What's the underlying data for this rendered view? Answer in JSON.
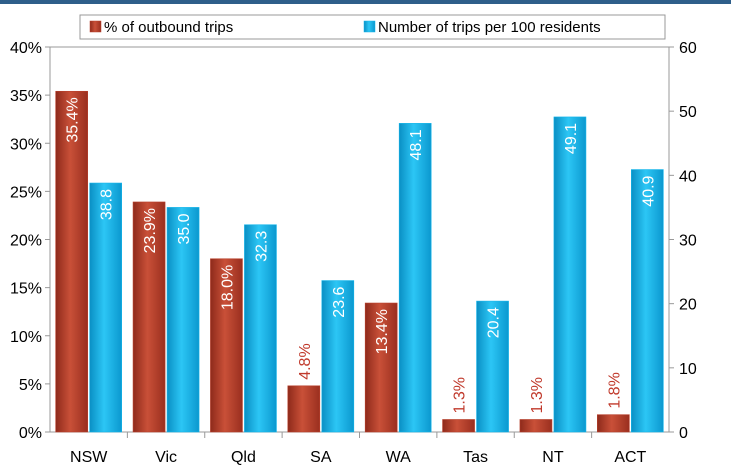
{
  "chart_data": {
    "type": "bar",
    "title": "",
    "categories": [
      "NSW",
      "Vic",
      "Qld",
      "SA",
      "WA",
      "Tas",
      "NT",
      "ACT"
    ],
    "series": [
      {
        "name": "% of outbound trips",
        "axis": "left",
        "color": "#b8402c",
        "values": [
          35.4,
          23.9,
          18.0,
          4.8,
          13.4,
          1.3,
          1.3,
          1.8
        ],
        "labels": [
          "35.4%",
          "23.9%",
          "18.0%",
          "4.8%",
          "13.4%",
          "1.3%",
          "1.3%",
          "1.8%"
        ]
      },
      {
        "name": "Number of trips per 100 residents",
        "axis": "right",
        "color": "#12b5ea",
        "values": [
          38.8,
          35.0,
          32.3,
          23.6,
          48.1,
          20.4,
          49.1,
          40.9
        ],
        "labels": [
          "38.8",
          "35.0",
          "32.3",
          "23.6",
          "48.1",
          "20.4",
          "49.1",
          "40.9"
        ]
      }
    ],
    "left_axis": {
      "range": [
        0,
        40
      ],
      "ticks": [
        0,
        5,
        10,
        15,
        20,
        25,
        30,
        35,
        40
      ],
      "tick_labels": [
        "0%",
        "5%",
        "10%",
        "15%",
        "20%",
        "25%",
        "30%",
        "35%",
        "40%"
      ]
    },
    "right_axis": {
      "range": [
        0,
        60
      ],
      "ticks": [
        0,
        10,
        20,
        30,
        40,
        50,
        60
      ],
      "tick_labels": [
        "0",
        "10",
        "20",
        "30",
        "40",
        "50",
        "60"
      ]
    },
    "grid": false,
    "legend": "top"
  }
}
